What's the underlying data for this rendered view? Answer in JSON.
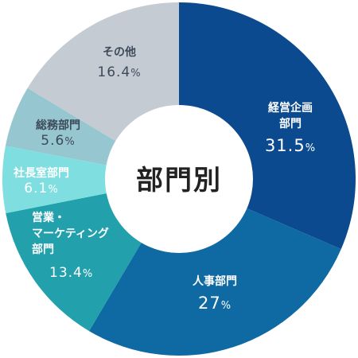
{
  "chart_data": {
    "type": "pie",
    "center_label": "部門別",
    "unit": "%",
    "slices": [
      {
        "name": [
          "経営企画",
          "部門"
        ],
        "value": 31.5,
        "value_text": "31.5",
        "color": "#0b4a8f"
      },
      {
        "name": [
          "人事部門"
        ],
        "value": 27,
        "value_text": "27",
        "color": "#0f6aa3"
      },
      {
        "name": [
          "営業・",
          "マーケティング",
          "部門"
        ],
        "value": 13.4,
        "value_text": "13.4",
        "color": "#22a1ad"
      },
      {
        "name": [
          "社長室部門"
        ],
        "value": 6.1,
        "value_text": "6.1",
        "color": "#7fdfe0"
      },
      {
        "name": [
          "総務部門"
        ],
        "value": 5.6,
        "value_text": "5.6",
        "color": "#96c6cf"
      },
      {
        "name": [
          "その他"
        ],
        "value": 16.4,
        "value_text": "16.4",
        "color": "#c5cbd2"
      }
    ]
  }
}
